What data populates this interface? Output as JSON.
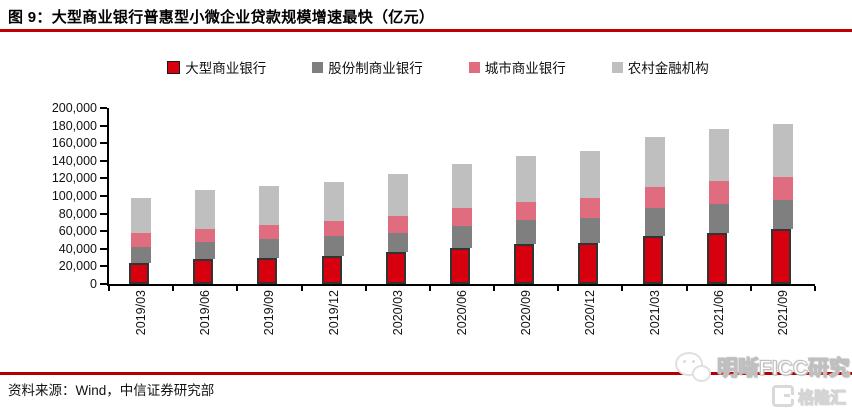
{
  "header": {
    "title": "图 9：大型商业银行普惠型小微企业贷款规模增速最快（亿元）"
  },
  "chart_data": {
    "type": "bar",
    "stacked": true,
    "title": "大型商业银行普惠型小微企业贷款规模增速最快（亿元）",
    "xlabel": "",
    "ylabel": "",
    "ylim": [
      0,
      200000
    ],
    "ytick_step": 20000,
    "grid": false,
    "legend_position": "top",
    "categories": [
      "2019/03",
      "2019/06",
      "2019/09",
      "2019/12",
      "2020/03",
      "2020/06",
      "2020/09",
      "2020/12",
      "2021/03",
      "2021/06",
      "2021/09"
    ],
    "series": [
      {
        "name": "大型商业银行",
        "color": "#d7000f",
        "border_color": "#333333",
        "values": [
          23500,
          28000,
          30000,
          32000,
          36000,
          40500,
          45000,
          47000,
          54500,
          58500,
          62000
        ]
      },
      {
        "name": "股份制商业银行",
        "color": "#7f7f7f",
        "values": [
          19000,
          20000,
          21500,
          22500,
          22500,
          25500,
          27500,
          28500,
          32000,
          32000,
          34000
        ]
      },
      {
        "name": "城市商业银行",
        "color": "#e06c80",
        "values": [
          15000,
          15000,
          15500,
          17000,
          18500,
          20000,
          21000,
          22500,
          24000,
          26500,
          25500
        ]
      },
      {
        "name": "农村金融机构",
        "color": "#bfbfbf",
        "values": [
          40500,
          43500,
          44500,
          44500,
          48500,
          50000,
          51500,
          53000,
          56500,
          59000,
          60500
        ]
      }
    ]
  },
  "footer": {
    "source": "资料来源：Wind，中信证券研究部"
  },
  "watermark": {
    "brand": "明晰FICC研究",
    "logo_text": "格隆汇"
  }
}
